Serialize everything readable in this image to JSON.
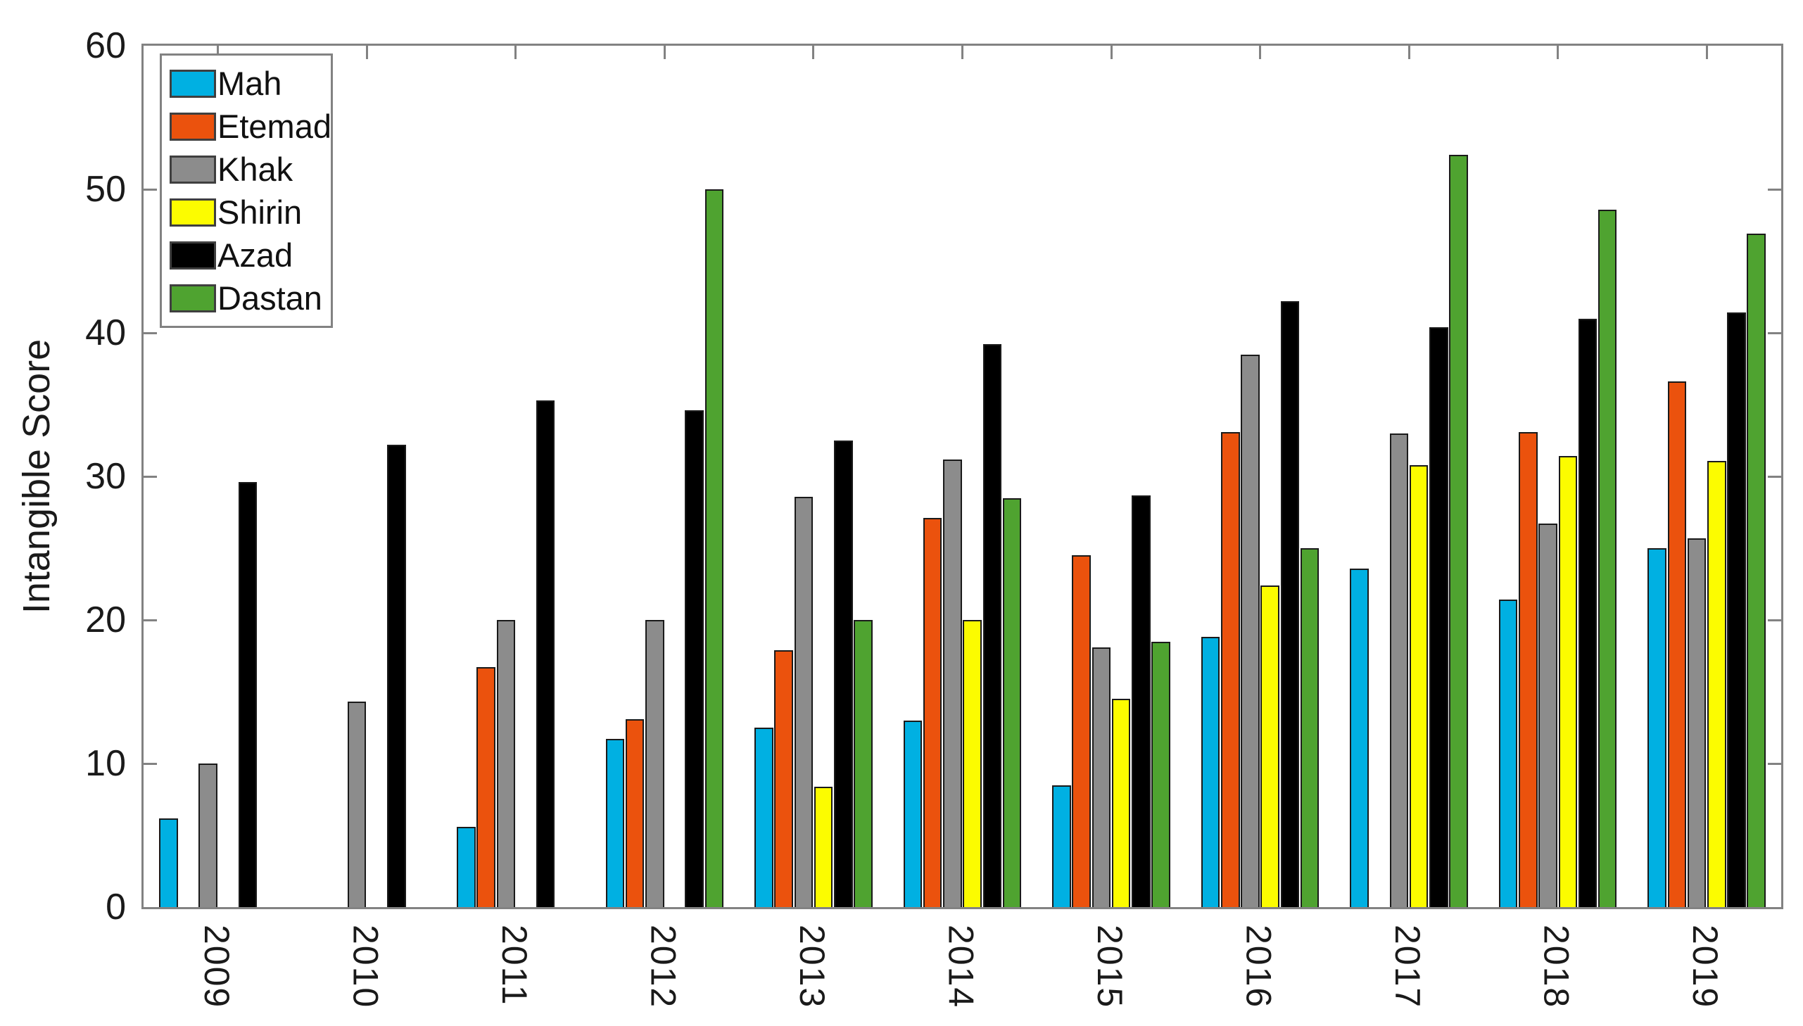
{
  "chart_data": {
    "type": "bar",
    "title": "",
    "ylabel": "Intangible Score",
    "xlabel": "",
    "ylim": [
      0,
      60
    ],
    "yticks": [
      0,
      10,
      20,
      30,
      40,
      50,
      60
    ],
    "grid": false,
    "legend_position": "top-left",
    "categories": [
      "2009",
      "2010",
      "2011",
      "2012",
      "2013",
      "2014",
      "2015",
      "2016",
      "2017",
      "2018",
      "2019"
    ],
    "series": [
      {
        "name": "Mah",
        "color": "#00B0E2",
        "values": [
          6.2,
          0,
          5.6,
          11.7,
          12.5,
          13.0,
          8.5,
          18.8,
          23.6,
          21.4,
          25.0
        ]
      },
      {
        "name": "Etemad",
        "color": "#EB520D",
        "values": [
          0,
          0,
          16.7,
          13.1,
          17.9,
          27.1,
          24.5,
          33.1,
          0,
          33.1,
          36.6
        ]
      },
      {
        "name": "Khak",
        "color": "#8C8C8C",
        "values": [
          10.0,
          14.3,
          20.0,
          20.0,
          28.6,
          31.2,
          18.1,
          38.5,
          33.0,
          26.7,
          25.7
        ]
      },
      {
        "name": "Shirin",
        "color": "#FCFC00",
        "values": [
          0,
          0,
          0,
          0,
          8.4,
          20.0,
          14.5,
          22.4,
          30.8,
          31.4,
          31.1
        ]
      },
      {
        "name": "Azad",
        "color": "#000000",
        "values": [
          29.6,
          32.2,
          35.3,
          34.6,
          32.5,
          39.2,
          28.7,
          42.2,
          40.4,
          41.0,
          41.4
        ]
      },
      {
        "name": "Dastan",
        "color": "#4FA330",
        "values": [
          0,
          0,
          0,
          50.0,
          20.0,
          28.5,
          18.5,
          25.0,
          52.4,
          48.6,
          46.9
        ]
      }
    ]
  }
}
